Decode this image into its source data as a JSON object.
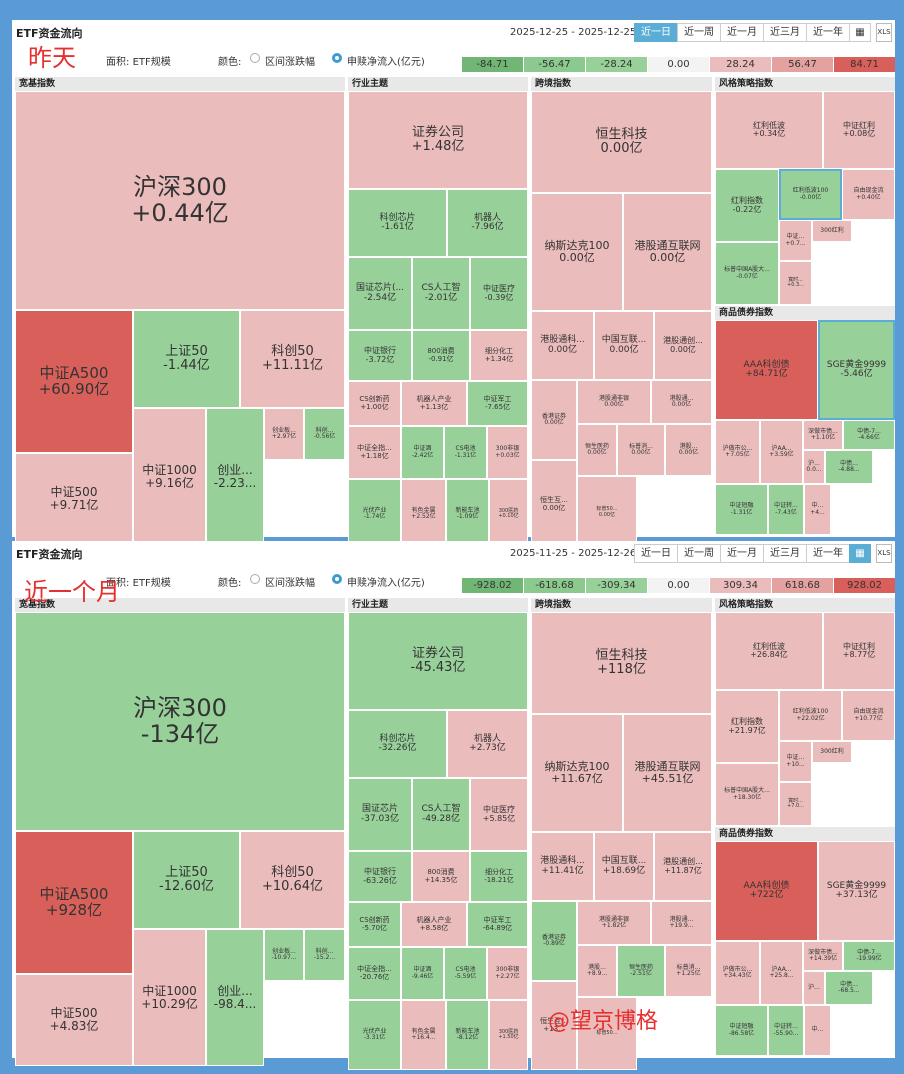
{
  "overlay_labels": {
    "top": "昨天",
    "bottom": "近一个月"
  },
  "watermark": "@望京博格",
  "colors": {
    "pos3": "#d9605a",
    "pos2": "#e3a2a0",
    "pos1": "#ebbcbc",
    "neg1": "#98d09a",
    "neg2": "#8cc98e",
    "neg3": "#72b676",
    "zero": "#f3f3f3",
    "active_tab": "#5aaed6"
  },
  "common": {
    "title": "ETF资金流向",
    "tabs": [
      "近一日",
      "近一周",
      "近一月",
      "近三月",
      "近一年"
    ],
    "calendar_icon": "calendar-icon",
    "xls_label": "XLS",
    "area_label": "面积:",
    "area_value": "ETF规模",
    "color_label": "颜色:",
    "color_opt1": "区间涨跌幅",
    "color_opt2": "申赎净流入(亿元)",
    "sections": [
      "宽基指数",
      "行业主题",
      "跨境指数",
      "风格策略指数",
      "商品债券指数"
    ]
  },
  "panels": [
    {
      "date_range": "2025-12-25 - 2025-12-25",
      "active_tab": 0,
      "legend": [
        "-84.71",
        "-56.47",
        "-28.24",
        "0.00",
        "28.24",
        "56.47",
        "84.71"
      ],
      "cells": [
        {
          "name": "沪深300",
          "value": "+0.44亿",
          "c": "pos1"
        },
        {
          "name": "中证A500",
          "value": "+60.90亿",
          "c": "pos3"
        },
        {
          "name": "上证50",
          "value": "-1.44亿",
          "c": "neg1"
        },
        {
          "name": "科创50",
          "value": "+11.11亿",
          "c": "pos1"
        },
        {
          "name": "中证500",
          "value": "+9.71亿",
          "c": "pos1"
        },
        {
          "name": "中证1000",
          "value": "+9.16亿",
          "c": "pos1"
        },
        {
          "name": "创业...",
          "value": "-2.23...",
          "c": "neg1"
        },
        {
          "name": "创业板...",
          "value": "+2.97亿",
          "c": "pos1"
        },
        {
          "name": "科创...",
          "value": "-0.56亿",
          "c": "neg1"
        },
        {
          "name": "证券公司",
          "value": "+1.48亿",
          "c": "pos1"
        },
        {
          "name": "科创芯片",
          "value": "-1.61亿",
          "c": "neg1"
        },
        {
          "name": "机器人",
          "value": "-7.96亿",
          "c": "neg1"
        },
        {
          "name": "国证芯片(...",
          "value": "-2.54亿",
          "c": "neg1"
        },
        {
          "name": "CS人工智",
          "value": "-2.01亿",
          "c": "neg1"
        },
        {
          "name": "中证医疗",
          "value": "-0.39亿",
          "c": "neg1"
        },
        {
          "name": "中证银行",
          "value": "-3.72亿",
          "c": "neg1"
        },
        {
          "name": "800消费",
          "value": "-0.91亿",
          "c": "neg1"
        },
        {
          "name": "细分化工",
          "value": "+1.34亿",
          "c": "pos1"
        },
        {
          "name": "CS创新药",
          "value": "+1.00亿",
          "c": "pos1"
        },
        {
          "name": "机器人产业",
          "value": "+1.13亿",
          "c": "pos1"
        },
        {
          "name": "中证军工",
          "value": "-7.65亿",
          "c": "neg1"
        },
        {
          "name": "中证全指...",
          "value": "+1.18亿",
          "c": "pos1"
        },
        {
          "name": "中证酒",
          "value": "-2.42亿",
          "c": "neg1"
        },
        {
          "name": "CS电池",
          "value": "-1.31亿",
          "c": "neg1"
        },
        {
          "name": "300非银",
          "value": "+0.03亿",
          "c": "pos1"
        },
        {
          "name": "光伏产业",
          "value": "-1.74亿",
          "c": "neg1"
        },
        {
          "name": "有色金属",
          "value": "+2.52亿",
          "c": "pos1"
        },
        {
          "name": "新能车池",
          "value": "-1.09亿",
          "c": "neg1"
        },
        {
          "name": "300医药",
          "value": "+0.10亿",
          "c": "pos1"
        },
        {
          "name": "恒生科技",
          "value": "0.00亿",
          "c": "pos1"
        },
        {
          "name": "纳斯达克100",
          "value": "0.00亿",
          "c": "pos1"
        },
        {
          "name": "港股通互联网",
          "value": "0.00亿",
          "c": "pos1"
        },
        {
          "name": "港股通科...",
          "value": "0.00亿",
          "c": "pos1"
        },
        {
          "name": "中国互联...",
          "value": "0.00亿",
          "c": "pos1"
        },
        {
          "name": "港股通创...",
          "value": "0.00亿",
          "c": "pos1"
        },
        {
          "name": "香港证券",
          "value": "0.00亿",
          "c": "pos1"
        },
        {
          "name": "港股通非银",
          "value": "0.00亿",
          "c": "pos1"
        },
        {
          "name": "港股通...",
          "value": "0.00亿",
          "c": "pos1"
        },
        {
          "name": "恒生医药",
          "value": "0.00亿",
          "c": "pos1"
        },
        {
          "name": "标普消...",
          "value": "0.00亿",
          "c": "pos1"
        },
        {
          "name": "港股...",
          "value": "0.00亿",
          "c": "pos1"
        },
        {
          "name": "恒生互...",
          "value": "0.00亿",
          "c": "pos1"
        },
        {
          "name": "标普50...",
          "value": "0.00亿",
          "c": "pos1"
        },
        {
          "name": "红利低波",
          "value": "+0.34亿",
          "c": "pos1"
        },
        {
          "name": "中证红利",
          "value": "+0.08亿",
          "c": "pos1"
        },
        {
          "name": "红利指数",
          "value": "-0.22亿",
          "c": "neg1"
        },
        {
          "name": "红利低波100",
          "value": "-0.00亿",
          "c": "neg1"
        },
        {
          "name": "自由现金流",
          "value": "+0.40亿",
          "c": "pos1"
        },
        {
          "name": "300红利",
          "value": "",
          "c": "pos1"
        },
        {
          "name": "中证...",
          "value": "+0.7...",
          "c": "pos1"
        },
        {
          "name": "标普中国A股大...",
          "value": "-0.07亿",
          "c": "neg1"
        },
        {
          "name": "寬时...",
          "value": "+0.3...",
          "c": "pos1"
        },
        {
          "name": "AAA科创债",
          "value": "+84.71亿",
          "c": "pos3"
        },
        {
          "name": "SGE黄金9999",
          "value": "-5.46亿",
          "c": "neg1"
        },
        {
          "name": "沪做市公...",
          "value": "+7.05亿",
          "c": "pos1"
        },
        {
          "name": "沪AA...",
          "value": "+3.59亿",
          "c": "pos1"
        },
        {
          "name": "深做市债...",
          "value": "+1.10亿",
          "c": "pos1"
        },
        {
          "name": "中债-7...",
          "value": "-4.66亿",
          "c": "neg1"
        },
        {
          "name": "沪...",
          "value": "0.0...",
          "c": "pos1"
        },
        {
          "name": "中债...",
          "value": "-4.88...",
          "c": "neg1"
        },
        {
          "name": "中证短融",
          "value": "-1.31亿",
          "c": "neg1"
        },
        {
          "name": "中证转...",
          "value": "-7.43亿",
          "c": "neg1"
        },
        {
          "name": "中...",
          "value": "+4...",
          "c": "pos1"
        }
      ]
    },
    {
      "date_range": "2025-11-25 - 2025-12-26",
      "active_tab": 5,
      "legend": [
        "-928.02",
        "-618.68",
        "-309.34",
        "0.00",
        "309.34",
        "618.68",
        "928.02"
      ],
      "cells": [
        {
          "name": "沪深300",
          "value": "-134亿",
          "c": "neg1"
        },
        {
          "name": "中证A500",
          "value": "+928亿",
          "c": "pos3"
        },
        {
          "name": "上证50",
          "value": "-12.60亿",
          "c": "neg1"
        },
        {
          "name": "科创50",
          "value": "+10.64亿",
          "c": "pos1"
        },
        {
          "name": "中证500",
          "value": "+4.83亿",
          "c": "pos1"
        },
        {
          "name": "中证1000",
          "value": "+10.29亿",
          "c": "pos1"
        },
        {
          "name": "创业...",
          "value": "-98.4...",
          "c": "neg1"
        },
        {
          "name": "创业板...",
          "value": "-10.97...",
          "c": "neg1"
        },
        {
          "name": "科创...",
          "value": "-15.2...",
          "c": "neg1"
        },
        {
          "name": "证券公司",
          "value": "-45.43亿",
          "c": "neg1"
        },
        {
          "name": "科创芯片",
          "value": "-32.26亿",
          "c": "neg1"
        },
        {
          "name": "机器人",
          "value": "+2.73亿",
          "c": "pos1"
        },
        {
          "name": "国证芯片",
          "value": "-37.03亿",
          "c": "neg1"
        },
        {
          "name": "CS人工智",
          "value": "-49.28亿",
          "c": "neg1"
        },
        {
          "name": "中证医疗",
          "value": "+5.85亿",
          "c": "pos1"
        },
        {
          "name": "中证银行",
          "value": "-63.26亿",
          "c": "neg1"
        },
        {
          "name": "800消费",
          "value": "+14.35亿",
          "c": "pos1"
        },
        {
          "name": "细分化工",
          "value": "-18.21亿",
          "c": "neg1"
        },
        {
          "name": "CS创新药",
          "value": "-5.70亿",
          "c": "neg1"
        },
        {
          "name": "机器人产业",
          "value": "+8.58亿",
          "c": "pos1"
        },
        {
          "name": "中证军工",
          "value": "-64.89亿",
          "c": "neg1"
        },
        {
          "name": "中证全指...",
          "value": "-20.76亿",
          "c": "neg1"
        },
        {
          "name": "中证酒",
          "value": "-9.46亿",
          "c": "neg1"
        },
        {
          "name": "CS电池",
          "value": "-5.59亿",
          "c": "neg1"
        },
        {
          "name": "300非银",
          "value": "+2.27亿",
          "c": "pos1"
        },
        {
          "name": "光伏产业",
          "value": "-3.31亿",
          "c": "neg1"
        },
        {
          "name": "有色金属",
          "value": "+16.4...",
          "c": "pos1"
        },
        {
          "name": "新能车池",
          "value": "-8.12亿",
          "c": "neg1"
        },
        {
          "name": "300医药",
          "value": "+1.50亿",
          "c": "pos1"
        },
        {
          "name": "恒生科技",
          "value": "+118亿",
          "c": "pos1"
        },
        {
          "name": "纳斯达克100",
          "value": "+11.67亿",
          "c": "pos1"
        },
        {
          "name": "港股通互联网",
          "value": "+45.51亿",
          "c": "pos1"
        },
        {
          "name": "港股通科...",
          "value": "+11.41亿",
          "c": "pos1"
        },
        {
          "name": "中国互联...",
          "value": "+18.69亿",
          "c": "pos1"
        },
        {
          "name": "港股通创...",
          "value": "+11.87亿",
          "c": "pos1"
        },
        {
          "name": "香港证券",
          "value": "-0.89亿",
          "c": "neg1"
        },
        {
          "name": "港股通非银",
          "value": "+1.82亿",
          "c": "pos1"
        },
        {
          "name": "港股通...",
          "value": "+19.9...",
          "c": "pos1"
        },
        {
          "name": "港股...",
          "value": "+8.9...",
          "c": "pos1"
        },
        {
          "name": "恒生医药",
          "value": "-2.51亿",
          "c": "neg1"
        },
        {
          "name": "标普消...",
          "value": "+1.25亿",
          "c": "pos1"
        },
        {
          "name": "恒生互...",
          "value": "+13...",
          "c": "pos1"
        },
        {
          "name": "标普50...",
          "value": "",
          "c": "pos1"
        },
        {
          "name": "红利低波",
          "value": "+26.84亿",
          "c": "pos1"
        },
        {
          "name": "中证红利",
          "value": "+8.77亿",
          "c": "pos1"
        },
        {
          "name": "红利指数",
          "value": "+21.97亿",
          "c": "pos1"
        },
        {
          "name": "红利低波100",
          "value": "+22.02亿",
          "c": "pos1"
        },
        {
          "name": "自由现金流",
          "value": "+10.77亿",
          "c": "pos1"
        },
        {
          "name": "300红利",
          "value": "",
          "c": "pos1"
        },
        {
          "name": "中证...",
          "value": "+10...",
          "c": "pos1"
        },
        {
          "name": "标普中国A股大...",
          "value": "+18.30亿",
          "c": "pos1"
        },
        {
          "name": "寬时...",
          "value": "+7.0...",
          "c": "pos1"
        },
        {
          "name": "AAA科创债",
          "value": "+722亿",
          "c": "pos3"
        },
        {
          "name": "SGE黄金9999",
          "value": "+37.13亿",
          "c": "pos1"
        },
        {
          "name": "沪做市公...",
          "value": "+34.43亿",
          "c": "pos1"
        },
        {
          "name": "沪AA...",
          "value": "+25.8...",
          "c": "pos1"
        },
        {
          "name": "深做市债...",
          "value": "+14.39亿",
          "c": "pos1"
        },
        {
          "name": "中债-7...",
          "value": "-19.99亿",
          "c": "neg1"
        },
        {
          "name": "沪...",
          "value": "",
          "c": "pos1"
        },
        {
          "name": "中债...",
          "value": "-68.5...",
          "c": "neg1"
        },
        {
          "name": "中证短融",
          "value": "-86.58亿",
          "c": "neg1"
        },
        {
          "name": "中证转...",
          "value": "-55.90...",
          "c": "neg1"
        },
        {
          "name": "中...",
          "value": "",
          "c": "pos1"
        }
      ]
    }
  ]
}
